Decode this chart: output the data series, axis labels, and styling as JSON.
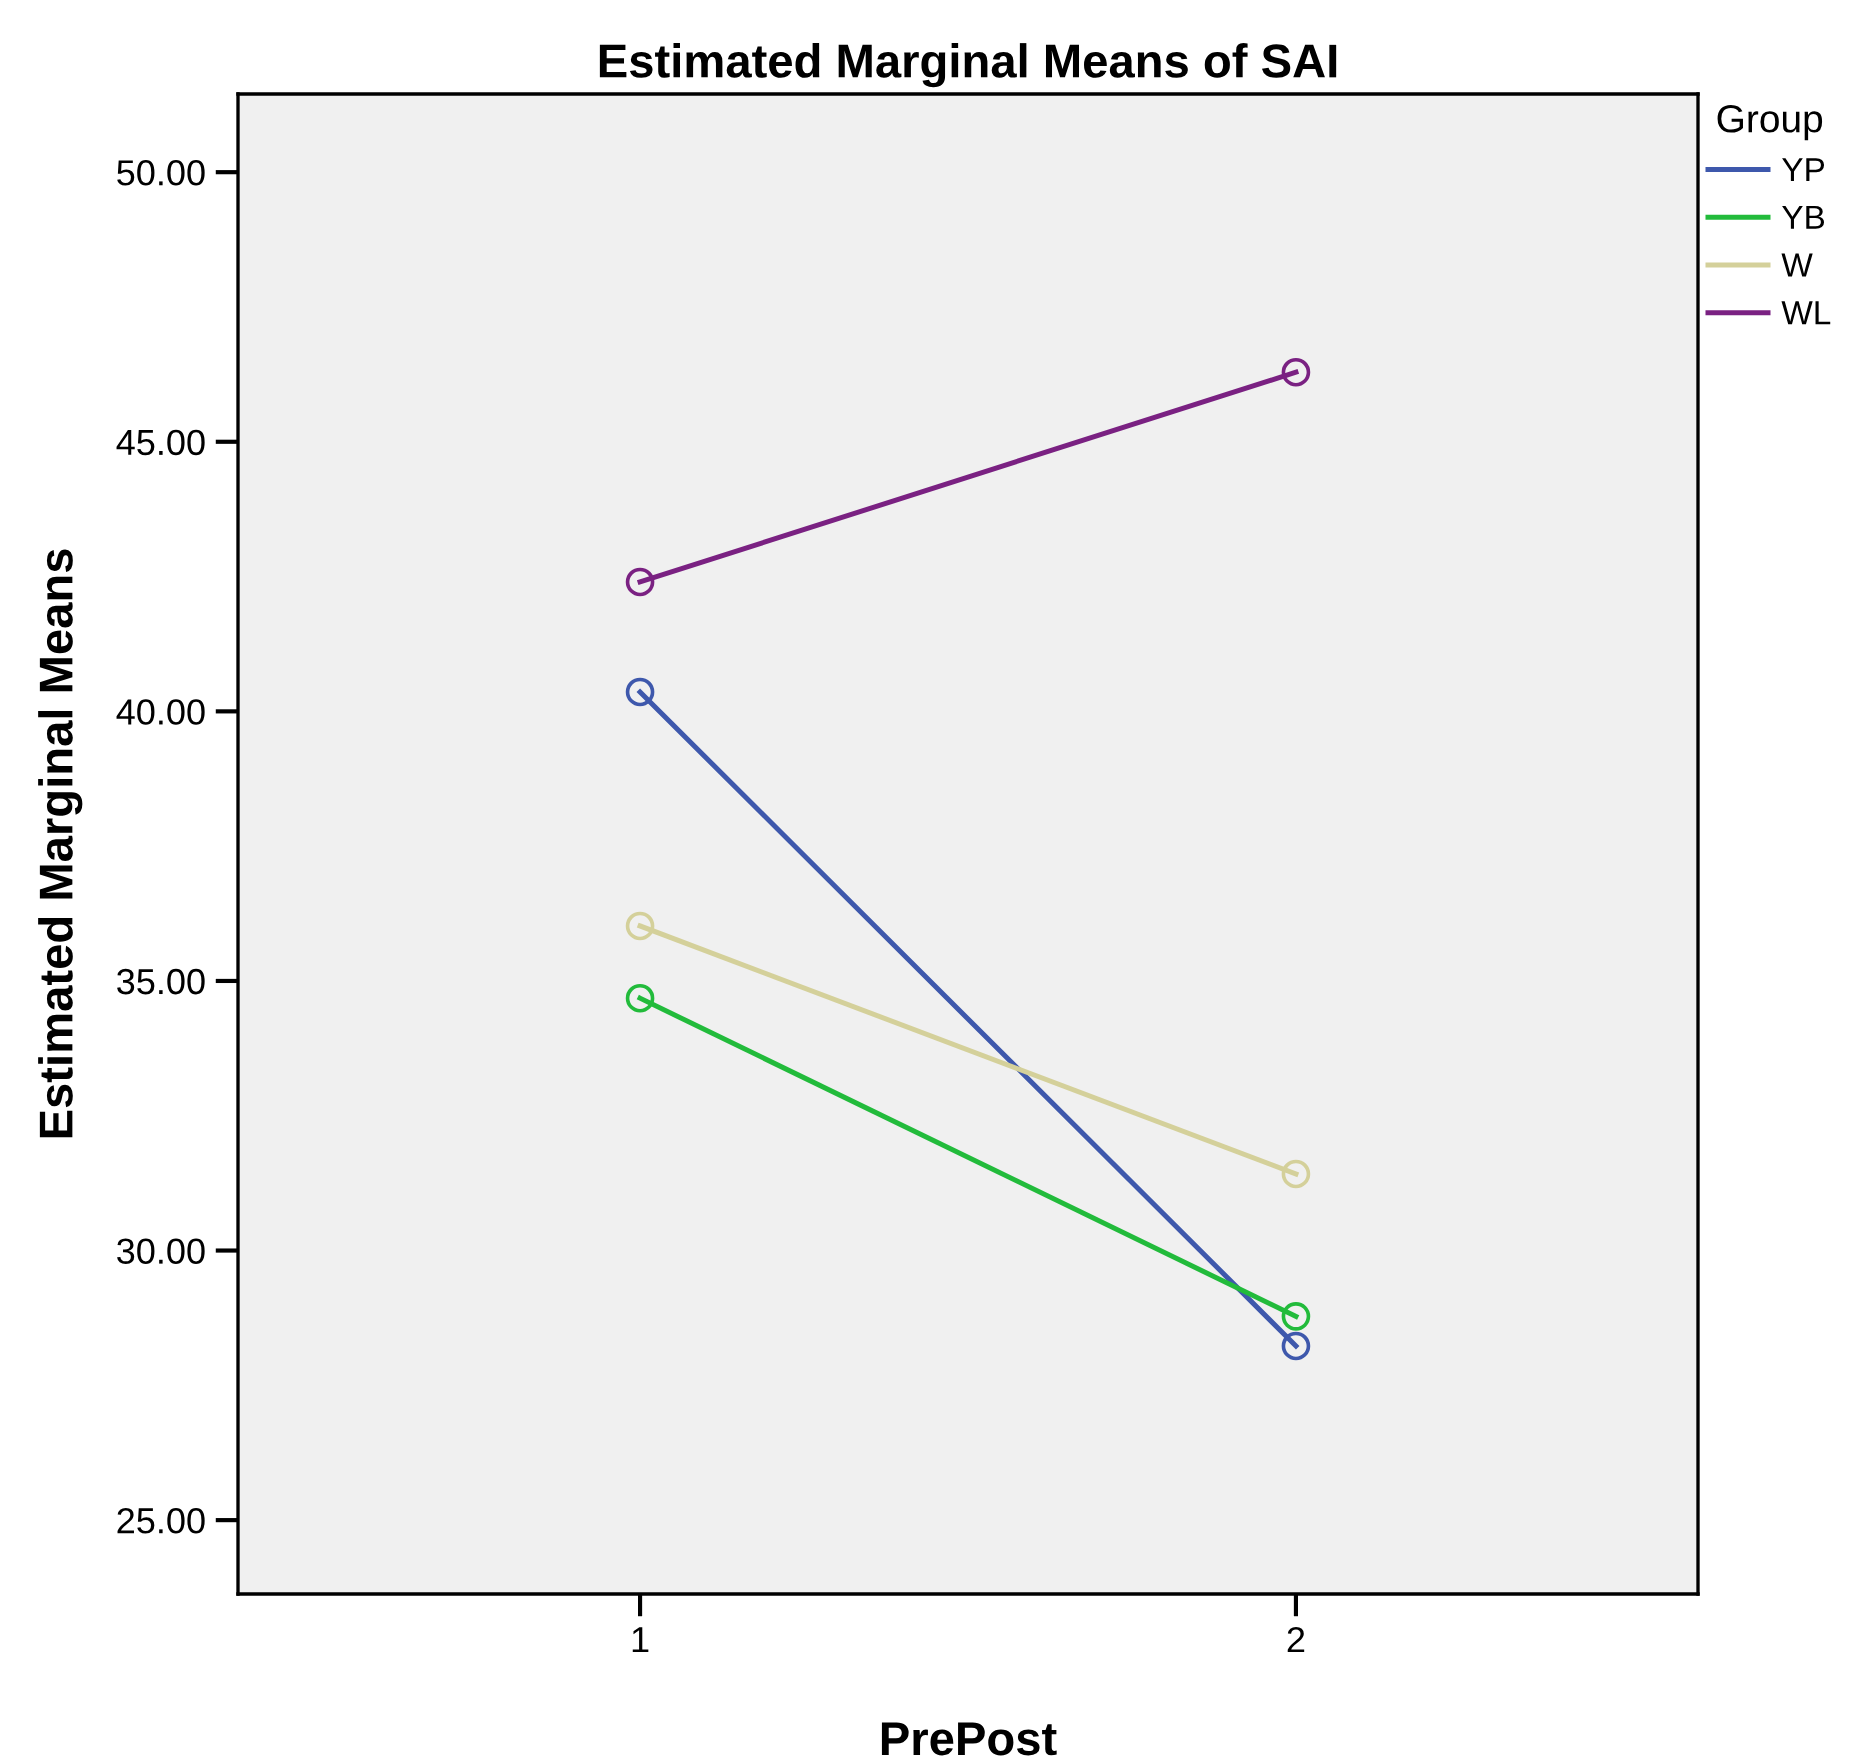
{
  "chart_data": {
    "type": "line",
    "title": "Estimated Marginal Means of SAI",
    "xlabel": "PrePost",
    "ylabel": "Estimated Marginal Means",
    "legend_title": "Group",
    "categories": [
      "1",
      "2"
    ],
    "series": [
      {
        "name": "YP",
        "color": "#3e58ac",
        "values": [
          40.36,
          28.23
        ]
      },
      {
        "name": "YB",
        "color": "#22bb3b",
        "values": [
          34.68,
          28.78
        ]
      },
      {
        "name": "W",
        "color": "#d4d09a",
        "values": [
          36.02,
          31.42
        ]
      },
      {
        "name": "WL",
        "color": "#7a2182",
        "values": [
          42.4,
          46.29
        ]
      }
    ],
    "ylim": [
      23.63,
      51.45
    ],
    "yticks": [
      {
        "value": 25,
        "label": "25.00"
      },
      {
        "value": 30,
        "label": "30.00"
      },
      {
        "value": 35,
        "label": "35.00"
      },
      {
        "value": 40,
        "label": "40.00"
      },
      {
        "value": 45,
        "label": "45.00"
      },
      {
        "value": 50,
        "label": "50.00"
      }
    ],
    "grid": false,
    "legend": "top right",
    "marker": "circle",
    "line_style": "solid"
  }
}
